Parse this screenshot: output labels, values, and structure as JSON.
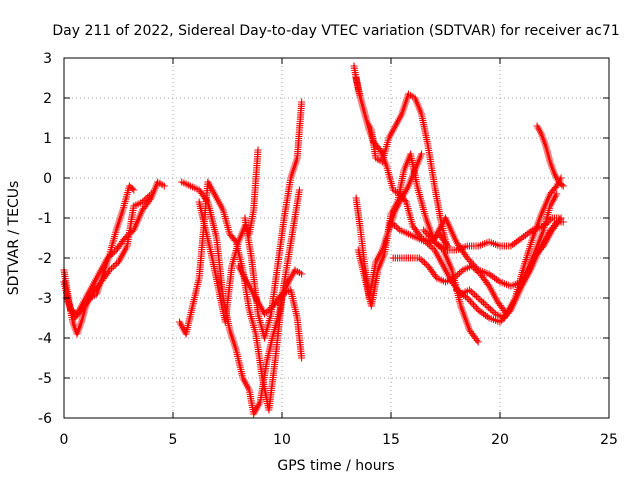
{
  "chart_data": {
    "type": "scatter",
    "title": "Day 211 of 2022, Sidereal Day-to-day VTEC variation (SDTVAR) for receiver ac71",
    "xlabel": "GPS time / hours",
    "ylabel": "SDTVAR / TECUs",
    "xlim": [
      0,
      25
    ],
    "ylim": [
      -6,
      3
    ],
    "xticks": [
      "0",
      "5",
      "10",
      "15",
      "20",
      "25"
    ],
    "yticks": [
      "-6",
      "-5",
      "-4",
      "-3",
      "-2",
      "-1",
      "0",
      "1",
      "2",
      "3"
    ],
    "grid": true,
    "marker": "+",
    "color": "#ff0000",
    "series": [
      {
        "name": "trace-1",
        "x": [
          0.0,
          0.2,
          0.4,
          0.6,
          0.8,
          1.0,
          1.2,
          1.5,
          1.8,
          2.1,
          2.4,
          2.7,
          3.0,
          3.2
        ],
        "y": [
          -2.3,
          -3.0,
          -3.6,
          -3.9,
          -3.6,
          -3.2,
          -3.0,
          -2.9,
          -2.4,
          -1.9,
          -1.3,
          -0.8,
          -0.2,
          -0.3
        ]
      },
      {
        "name": "trace-2",
        "x": [
          0.0,
          0.3,
          0.6,
          0.9,
          1.2,
          1.6,
          2.0,
          2.4,
          2.8,
          3.2,
          3.6,
          4.0,
          4.3,
          4.6
        ],
        "y": [
          -2.6,
          -3.3,
          -3.4,
          -3.1,
          -2.8,
          -2.4,
          -2.0,
          -1.8,
          -1.5,
          -1.3,
          -0.8,
          -0.5,
          -0.1,
          -0.2
        ]
      },
      {
        "name": "trace-3",
        "x": [
          0.1,
          0.5,
          0.9,
          1.3,
          1.7,
          2.1,
          2.5,
          2.9,
          3.2,
          3.6,
          4.0
        ],
        "y": [
          -3.0,
          -3.5,
          -3.2,
          -2.9,
          -2.6,
          -2.3,
          -2.1,
          -1.7,
          -0.7,
          -0.6,
          -0.4
        ]
      },
      {
        "name": "trace-4",
        "x": [
          5.3,
          5.6,
          5.9,
          6.2,
          6.6,
          7.0,
          7.3,
          7.6,
          7.9,
          8.2,
          8.5,
          8.8,
          9.1,
          9.4,
          9.7,
          10.0,
          10.3,
          10.6,
          10.9
        ],
        "y": [
          -3.6,
          -3.9,
          -3.2,
          -2.5,
          -0.1,
          -0.5,
          -0.8,
          -1.4,
          -1.6,
          -2.3,
          -3.3,
          -3.9,
          -5.0,
          -5.8,
          -4.5,
          -3.0,
          -2.6,
          -2.3,
          -2.4
        ]
      },
      {
        "name": "trace-5",
        "x": [
          5.4,
          5.8,
          6.2,
          6.6,
          7.0,
          7.3,
          7.6,
          7.9,
          8.2,
          8.5,
          8.7,
          9.0,
          9.3,
          9.6,
          9.9,
          10.2,
          10.5,
          10.8
        ],
        "y": [
          -0.1,
          -0.2,
          -0.3,
          -0.6,
          -1.5,
          -3.0,
          -3.8,
          -4.3,
          -5.0,
          -5.3,
          -5.9,
          -5.6,
          -4.6,
          -3.9,
          -3.3,
          -2.3,
          -1.3,
          -0.3
        ]
      },
      {
        "name": "trace-6",
        "x": [
          6.2,
          6.5,
          6.8,
          7.1,
          7.4,
          7.7,
          8.0,
          8.3,
          8.5,
          8.7,
          8.9
        ],
        "y": [
          -0.6,
          -1.3,
          -2.0,
          -2.8,
          -3.6,
          -2.2,
          -1.6,
          -1.2,
          -1.4,
          -0.8,
          0.7
        ]
      },
      {
        "name": "trace-7",
        "x": [
          8.0,
          8.4,
          8.8,
          9.2,
          9.6,
          10.0,
          10.4,
          10.7,
          10.9
        ],
        "y": [
          -2.2,
          -2.6,
          -3.0,
          -3.4,
          -3.2,
          -2.9,
          -2.8,
          -3.5,
          -4.5
        ]
      },
      {
        "name": "trace-8",
        "x": [
          8.3,
          8.6,
          8.9,
          9.2,
          9.5,
          9.8,
          10.1,
          10.4,
          10.7,
          10.9
        ],
        "y": [
          -1.0,
          -2.0,
          -3.4,
          -4.0,
          -3.4,
          -2.2,
          -1.0,
          0.0,
          0.5,
          1.9
        ]
      },
      {
        "name": "trace-9",
        "x": [
          13.3,
          13.5,
          13.7,
          13.9,
          14.1,
          14.3,
          14.6,
          14.9,
          15.2,
          15.5,
          15.8,
          16.1,
          16.4,
          16.7,
          17.0,
          17.3,
          17.6
        ],
        "y": [
          2.8,
          2.2,
          1.8,
          1.4,
          1.2,
          0.5,
          0.4,
          1.0,
          1.3,
          1.6,
          2.1,
          2.0,
          1.6,
          0.8,
          -0.2,
          -1.1,
          -1.8
        ]
      },
      {
        "name": "trace-10",
        "x": [
          13.4,
          13.6,
          13.8,
          14.0,
          14.2,
          14.5,
          14.8,
          15.1,
          15.4,
          15.7,
          16.0,
          16.4,
          16.8,
          17.2,
          17.6
        ],
        "y": [
          2.5,
          2.0,
          1.6,
          1.2,
          0.9,
          0.7,
          0.3,
          -0.3,
          -0.4,
          -0.6,
          -1.2,
          -1.5,
          -1.6,
          -1.4,
          -1.7
        ]
      },
      {
        "name": "trace-11",
        "x": [
          13.4,
          13.6,
          13.8,
          14.0,
          14.3,
          14.6,
          14.9,
          15.2,
          15.5,
          15.8,
          16.1,
          16.4
        ],
        "y": [
          -0.5,
          -1.3,
          -2.2,
          -3.0,
          -2.1,
          -1.8,
          -1.3,
          -0.8,
          -0.5,
          -0.2,
          0.2,
          0.6
        ]
      },
      {
        "name": "trace-12",
        "x": [
          13.5,
          13.8,
          14.1,
          14.4,
          14.7,
          15.0,
          15.3,
          15.6,
          15.9,
          16.2,
          16.6,
          17.0,
          17.4,
          17.8,
          18.2,
          18.6,
          19.0
        ],
        "y": [
          -1.8,
          -2.5,
          -3.2,
          -2.3,
          -1.9,
          -0.9,
          -0.6,
          0.2,
          0.6,
          -0.2,
          -1.0,
          -1.6,
          -1.8,
          -2.3,
          -3.2,
          -3.8,
          -4.1
        ]
      },
      {
        "name": "trace-13",
        "x": [
          15.0,
          15.4,
          15.8,
          16.2,
          16.6,
          17.0,
          17.4,
          17.8,
          18.2,
          18.6,
          19.0,
          19.4,
          19.8,
          20.2,
          20.6,
          21.0,
          21.4,
          21.8,
          22.2,
          22.6,
          22.9
        ],
        "y": [
          -1.1,
          -1.3,
          -1.4,
          -1.5,
          -1.6,
          -1.8,
          -2.2,
          -2.6,
          -2.9,
          -2.8,
          -3.0,
          -3.2,
          -3.4,
          -3.5,
          -3.1,
          -2.7,
          -2.3,
          -1.8,
          -1.4,
          -1.1,
          -1.1
        ]
      },
      {
        "name": "trace-14",
        "x": [
          15.1,
          15.5,
          15.9,
          16.3,
          16.7,
          17.1,
          17.5,
          17.9,
          18.3,
          18.7,
          19.1,
          19.5,
          19.9,
          20.3,
          20.7,
          21.1,
          21.5,
          21.9,
          22.3,
          22.6,
          22.8
        ],
        "y": [
          -2.0,
          -2.0,
          -2.0,
          -2.0,
          -2.2,
          -2.5,
          -2.6,
          -2.5,
          -2.3,
          -2.2,
          -2.4,
          -2.7,
          -3.1,
          -3.4,
          -3.0,
          -2.2,
          -1.5,
          -0.9,
          -0.4,
          -0.2,
          0.0
        ]
      },
      {
        "name": "trace-15",
        "x": [
          16.5,
          17.0,
          17.5,
          18.0,
          18.5,
          19.0,
          19.5,
          20.0,
          20.5,
          21.0,
          21.5,
          22.0,
          22.4,
          22.8
        ],
        "y": [
          -1.3,
          -1.6,
          -1.8,
          -1.8,
          -1.7,
          -1.7,
          -1.6,
          -1.7,
          -1.7,
          -1.5,
          -1.3,
          -1.2,
          -1.0,
          -1.0
        ]
      },
      {
        "name": "trace-16",
        "x": [
          17.0,
          17.5,
          18.0,
          18.5,
          19.0,
          19.5,
          20.0,
          20.5,
          21.0,
          21.5,
          22.0,
          22.3,
          22.6
        ],
        "y": [
          -1.5,
          -1.0,
          -1.6,
          -2.0,
          -2.3,
          -2.4,
          -2.6,
          -2.7,
          -2.6,
          -2.0,
          -1.3,
          -0.7,
          -0.4
        ]
      },
      {
        "name": "trace-17",
        "x": [
          18.0,
          18.5,
          19.0,
          19.5,
          20.0,
          20.5,
          21.0,
          21.5,
          22.0,
          22.4,
          22.8
        ],
        "y": [
          -2.8,
          -3.0,
          -3.3,
          -3.5,
          -3.6,
          -3.3,
          -2.7,
          -2.0,
          -1.7,
          -1.3,
          -1.0
        ]
      },
      {
        "name": "trace-18",
        "x": [
          21.7,
          21.9,
          22.1,
          22.3,
          22.5,
          22.7,
          22.9
        ],
        "y": [
          1.3,
          1.1,
          0.8,
          0.4,
          0.1,
          -0.1,
          -0.2
        ]
      }
    ]
  }
}
